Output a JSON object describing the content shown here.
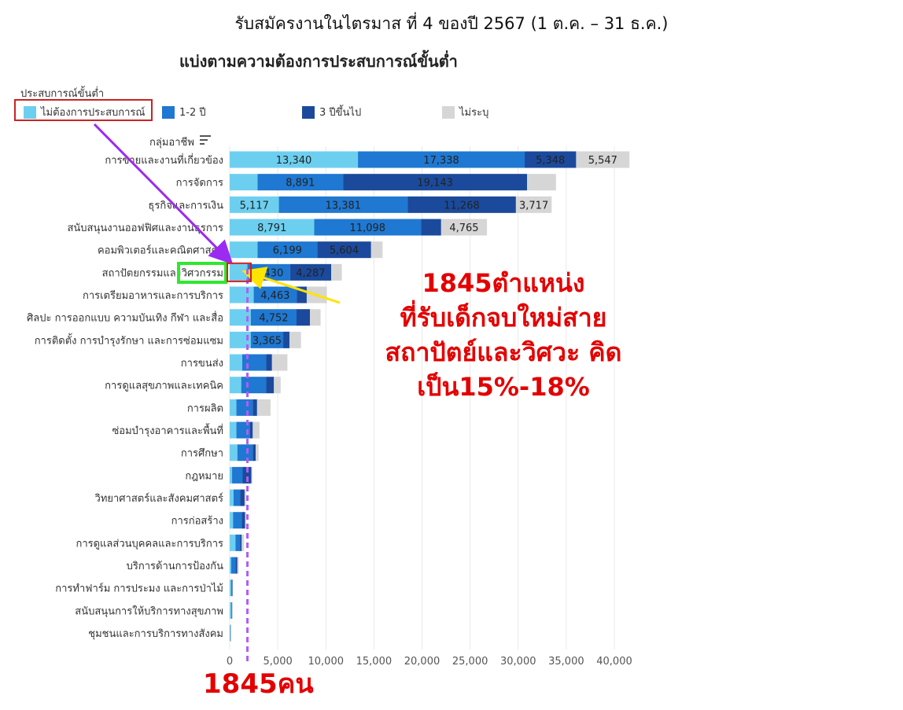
{
  "header": {
    "title": "รับสมัครงานในไตรมาส ที่ 4 ของปี 2567 (1 ต.ค. – 31 ธ.ค.)",
    "subtitle": "แบ่งตามความต้องการประสบการณ์ขั้นต่ำ"
  },
  "legend": {
    "title": "ประสบการณ์ขั้นต่ำ",
    "group_header": "กลุ่มอาชีพ"
  },
  "colors": {
    "none_required": "#6dcff0",
    "one_two_years": "#1f78d1",
    "three_plus": "#1b4a9c",
    "unspecified": "#d6d6d6",
    "annotation_red": "#e30000",
    "arrow_purple": "#9b2bf0",
    "arrow_yellow": "#ffe400",
    "highlight_green": "#2ee82e"
  },
  "annotations": {
    "main_line1": "1845ตำแหน่ง",
    "main_line2": "ที่รับเด็กจบใหม่สาย",
    "main_line3": "สถาปัตย์และวิศวะ คิด",
    "main_line4": "เป็น15%-18%",
    "bottom": "1845คน"
  },
  "chart_data": {
    "type": "bar",
    "orientation": "horizontal",
    "stacked": true,
    "xlim": [
      0,
      40000
    ],
    "x_ticks": [
      "0",
      "5,000",
      "10,000",
      "15,000",
      "20,000",
      "25,000",
      "30,000",
      "35,000",
      "40,000"
    ],
    "grid": true,
    "legend_position": "top-left",
    "categories": [
      "การขายและงานที่เกี่ยวข้อง",
      "การจัดการ",
      "ธุรกิจและการเงิน",
      "สนับสนุนงานออฟฟิศและงานธุรการ",
      "คอมพิวเตอร์และคณิตศาสตร์",
      "สถาปัตยกรรมและวิศวกรรม",
      "การเตรียมอาหารและการบริการ",
      "ศิลปะ การออกแบบ ความบันเทิง กีฬา และสื่อ",
      "การติดตั้ง การบำรุงรักษา และการซ่อมแซม",
      "การขนส่ง",
      "การดูแลสุขภาพและเทคนิค",
      "การผลิต",
      "ซ่อมบำรุงอาคารและพื้นที่",
      "การศึกษา",
      "กฎหมาย",
      "วิทยาศาสตร์และสังคมศาสตร์",
      "การก่อสร้าง",
      "การดูแลส่วนบุคคลและการบริการ",
      "บริการด้านการป้องกัน",
      "การทำฟาร์ม การประมง และการป่าไม้",
      "สนับสนุนการให้บริการทางสุขภาพ",
      "ชุมชนและการบริการทางสังคม"
    ],
    "series": [
      {
        "name": "ไม่ต้องการประสบการณ์",
        "values": [
          13340,
          2900,
          5117,
          8791,
          2900,
          1845,
          2500,
          2200,
          2200,
          1300,
          1200,
          700,
          700,
          800,
          250,
          400,
          350,
          600,
          150,
          150,
          150,
          50
        ]
      },
      {
        "name": "1-2 ปี",
        "values": [
          17338,
          8891,
          13381,
          11098,
          6199,
          4430,
          4463,
          4752,
          3365,
          2500,
          2600,
          1700,
          1400,
          1600,
          1100,
          700,
          900,
          500,
          450,
          100,
          80,
          30
        ]
      },
      {
        "name": "3 ปีขึ้นไป",
        "values": [
          5348,
          19143,
          11268,
          2100,
          5604,
          4287,
          1050,
          1400,
          650,
          600,
          800,
          450,
          300,
          300,
          900,
          450,
          350,
          150,
          200,
          50,
          30,
          20
        ]
      },
      {
        "name": "ไม่ระบุ",
        "values": [
          5547,
          3000,
          3717,
          4765,
          1200,
          1100,
          2100,
          1100,
          1200,
          1600,
          700,
          1400,
          700,
          300,
          100,
          150,
          100,
          250,
          150,
          50,
          30,
          20
        ]
      }
    ],
    "data_labels": [
      [
        "13,340",
        "17,338",
        "5,348",
        "5,547"
      ],
      [
        "",
        "8,891",
        "19,143",
        ""
      ],
      [
        "5,117",
        "13,381",
        "11,268",
        "3,717"
      ],
      [
        "8,791",
        "11,098",
        "",
        "4,765"
      ],
      [
        "",
        "6,199",
        "5,604",
        ""
      ],
      [
        "",
        "4,430",
        "4,287",
        ""
      ],
      [
        "",
        "4,463",
        "",
        ""
      ],
      [
        "",
        "4,752",
        "",
        ""
      ],
      [
        "",
        "3,365",
        "",
        ""
      ],
      [
        "",
        "",
        "",
        ""
      ],
      [
        "",
        "",
        "",
        ""
      ],
      [
        "",
        "",
        "",
        ""
      ],
      [
        "",
        "",
        "",
        ""
      ],
      [
        "",
        "",
        "",
        ""
      ],
      [
        "",
        "",
        "",
        ""
      ],
      [
        "",
        "",
        "",
        ""
      ],
      [
        "",
        "",
        "",
        ""
      ],
      [
        "",
        "",
        "",
        ""
      ],
      [
        "",
        "",
        "",
        ""
      ],
      [
        "",
        "",
        "",
        ""
      ],
      [
        "",
        "",
        "",
        ""
      ],
      [
        "",
        "",
        "",
        ""
      ]
    ],
    "reference_line": {
      "x": 1845
    }
  }
}
